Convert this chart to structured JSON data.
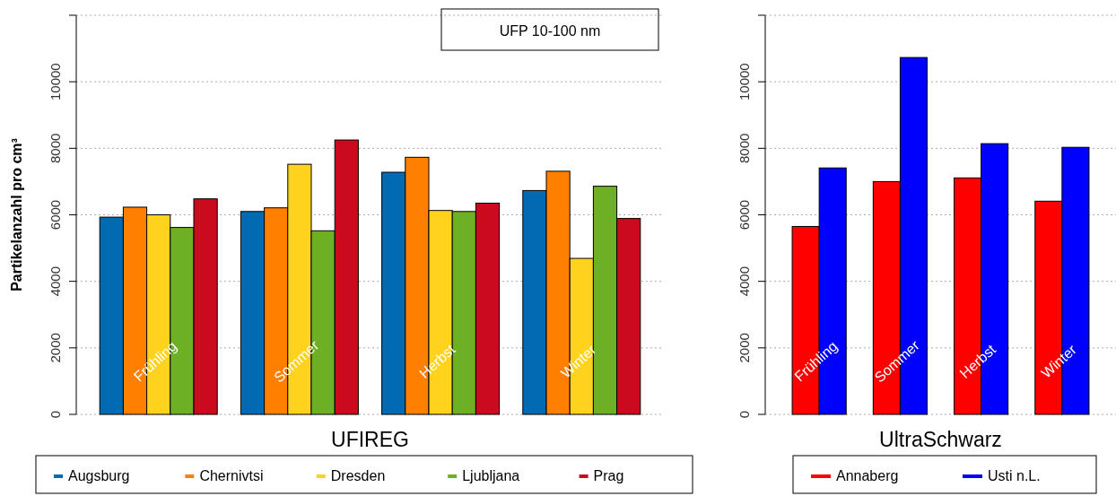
{
  "chart_data": [
    {
      "type": "bar",
      "xlabel": "UFIREG",
      "ylabel": "Partikelanzahl pro cm³",
      "annotations": [
        "UFP 10-100 nm"
      ],
      "categories": [
        "Frühling",
        "Sommer",
        "Herbst",
        "Winter"
      ],
      "series": [
        {
          "name": "Augsburg",
          "color": "#006bb3",
          "values": [
            5930,
            6100,
            7280,
            6730
          ]
        },
        {
          "name": "Chernivtsi",
          "color": "#ff8000",
          "values": [
            6230,
            6210,
            7730,
            7310
          ]
        },
        {
          "name": "Dresden",
          "color": "#ffd21e",
          "values": [
            6000,
            7520,
            6130,
            4690
          ]
        },
        {
          "name": "Ljubljana",
          "color": "#6eb024",
          "values": [
            5620,
            5520,
            6100,
            6860
          ]
        },
        {
          "name": "Prag",
          "color": "#cc0a1e",
          "values": [
            6480,
            8250,
            6350,
            5890
          ]
        }
      ],
      "ylim": [
        0,
        12000
      ],
      "yticks": [
        0,
        2000,
        4000,
        6000,
        8000,
        10000,
        {
          "value": 12000,
          "label": null
        }
      ],
      "grid": "y",
      "legend": "bottom"
    },
    {
      "type": "bar",
      "xlabel": "UltraSchwarz",
      "categories": [
        "Frühling",
        "Sommer",
        "Herbst",
        "Winter"
      ],
      "series": [
        {
          "name": "Annaberg",
          "color": "#ff0000",
          "values": [
            5650,
            7000,
            7110,
            6410
          ]
        },
        {
          "name": "Usti n.L.",
          "color": "#0000ff",
          "values": [
            7410,
            10730,
            8140,
            8030
          ]
        }
      ],
      "ylim": [
        0,
        12000
      ],
      "yticks": [
        0,
        2000,
        4000,
        6000,
        8000,
        10000,
        {
          "value": 12000,
          "label": null
        }
      ],
      "grid": "y",
      "legend": "bottom"
    }
  ]
}
